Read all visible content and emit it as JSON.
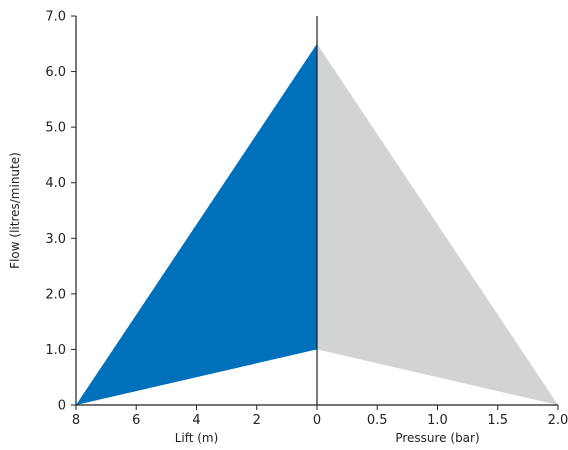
{
  "chart_data": {
    "type": "area",
    "title": "",
    "ylabel": "Flow (litres/minute)",
    "ylim": [
      0,
      7
    ],
    "y_ticks": [
      "0",
      "1.0",
      "2.0",
      "3.0",
      "4.0",
      "5.0",
      "6.0",
      "7.0"
    ],
    "y_tick_values": [
      0,
      1,
      2,
      3,
      4,
      5,
      6,
      7
    ],
    "left_axis": {
      "label": "Lift (m)",
      "xlim": [
        8,
        0
      ],
      "ticks": [
        "8",
        "6",
        "4",
        "2",
        "0"
      ],
      "tick_values": [
        8,
        6,
        4,
        2,
        0
      ]
    },
    "right_axis": {
      "label": "Pressure (bar)",
      "xlim": [
        0,
        2.0
      ],
      "ticks": [
        "0",
        "0.5",
        "1.0",
        "1.5",
        "2.0"
      ],
      "tick_values": [
        0,
        0.5,
        1.0,
        1.5,
        2.0
      ]
    },
    "series": [
      {
        "panel": "left",
        "color": "#0070bb",
        "polygon": [
          {
            "x": 8,
            "y": 0
          },
          {
            "x": 0,
            "y": 6.5
          },
          {
            "x": 0,
            "y": 1.0
          }
        ]
      },
      {
        "panel": "right",
        "color": "#d1d3d4",
        "polygon": [
          {
            "x": 0,
            "y": 6.5
          },
          {
            "x": 2.0,
            "y": 0
          },
          {
            "x": 0,
            "y": 1.0
          }
        ]
      }
    ],
    "grid": false,
    "legend": "none"
  }
}
